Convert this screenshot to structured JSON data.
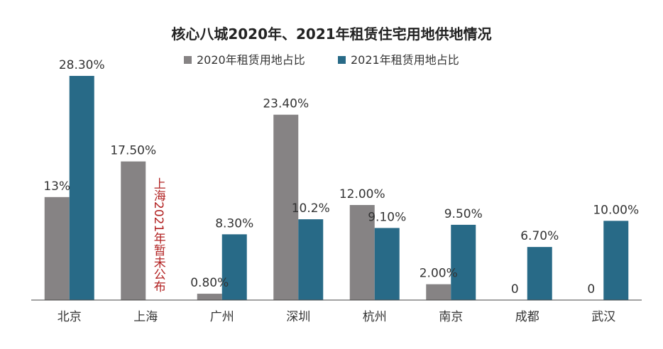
{
  "chart_data": {
    "type": "bar",
    "title": "核心八城2020年、2021年租赁住宅用地供地情况",
    "categories": [
      "北京",
      "上海",
      "广州",
      "深圳",
      "杭州",
      "南京",
      "成都",
      "武汉"
    ],
    "series": [
      {
        "name": "2020年租赁用地占比",
        "color": "#868384",
        "values": [
          13,
          17.5,
          0.8,
          23.4,
          12.0,
          2.0,
          0,
          0
        ],
        "labels": [
          "13%",
          "17.50%",
          "0.80%",
          "23.40%",
          "12.00%",
          "2.00%",
          "0",
          "0"
        ]
      },
      {
        "name": "2021年租赁用地占比",
        "color": "#286a87",
        "values": [
          28.3,
          null,
          8.3,
          10.2,
          9.1,
          9.5,
          6.7,
          10.0
        ],
        "labels": [
          "28.30%",
          "",
          "8.30%",
          "10.2%",
          "9.10%",
          "9.50%",
          "6.70%",
          "10.00%"
        ]
      }
    ],
    "annotation": {
      "category": "上海",
      "text": "上海2021年暂未公布"
    },
    "ylim": [
      0,
      30
    ],
    "xlabel": "",
    "ylabel": "",
    "legend": "top-center",
    "grid": false
  }
}
